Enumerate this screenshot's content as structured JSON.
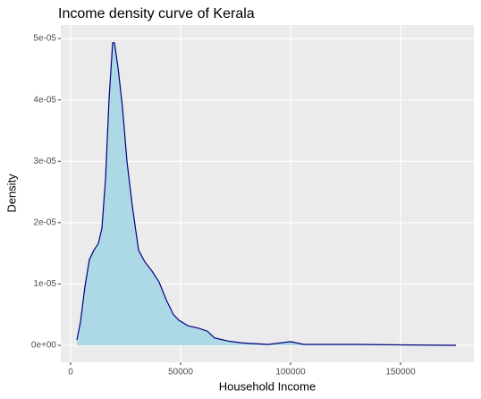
{
  "chart_data": {
    "type": "density",
    "title": "Income density curve of Kerala",
    "x_label": "Household Income",
    "y_label": "Density",
    "x": [
      2846,
      4472,
      6504,
      8537,
      10569,
      12602,
      14228,
      15854,
      17480,
      19106,
      19919,
      21545,
      23577,
      25610,
      28049,
      30894,
      33740,
      36992,
      40244,
      43496,
      46748,
      49187,
      53252,
      58130,
      62195,
      65447,
      71545,
      77642,
      89837,
      100000,
      106098,
      130488,
      154878,
      175203
    ],
    "y": [
      8.7e-07,
      3.8e-06,
      9.6e-06,
      1.4e-05,
      1.55e-05,
      1.66e-05,
      1.91e-05,
      2.71e-05,
      4.02e-05,
      4.93e-05,
      4.93e-05,
      4.53e-05,
      3.88e-05,
      3e-05,
      2.27e-05,
      1.55e-05,
      1.36e-05,
      1.21e-05,
      1.03e-05,
      7.4e-06,
      5e-06,
      4.1e-06,
      3.2e-06,
      2.8e-06,
      2.3e-06,
      1.2e-06,
      7e-07,
      4e-07,
      1.5e-07,
      6e-07,
      1.5e-07,
      1.5e-07,
      5e-08,
      0
    ],
    "line_color": "#000080",
    "fill_color": "#add8e6",
    "xlim": [
      -4472,
      183333
    ],
    "ylim": [
      -2.77e-06,
      5.22e-05
    ],
    "xticks": [
      0,
      50000,
      100000,
      150000
    ],
    "yticks": [
      {
        "value": 0,
        "label": "0e+00"
      },
      {
        "value": 1e-05,
        "label": "1e-05"
      },
      {
        "value": 2e-05,
        "label": "2e-05"
      },
      {
        "value": 3e-05,
        "label": "3e-05"
      },
      {
        "value": 4e-05,
        "label": "4e-05"
      },
      {
        "value": 5e-05,
        "label": "5e-05"
      }
    ],
    "grid": true
  }
}
